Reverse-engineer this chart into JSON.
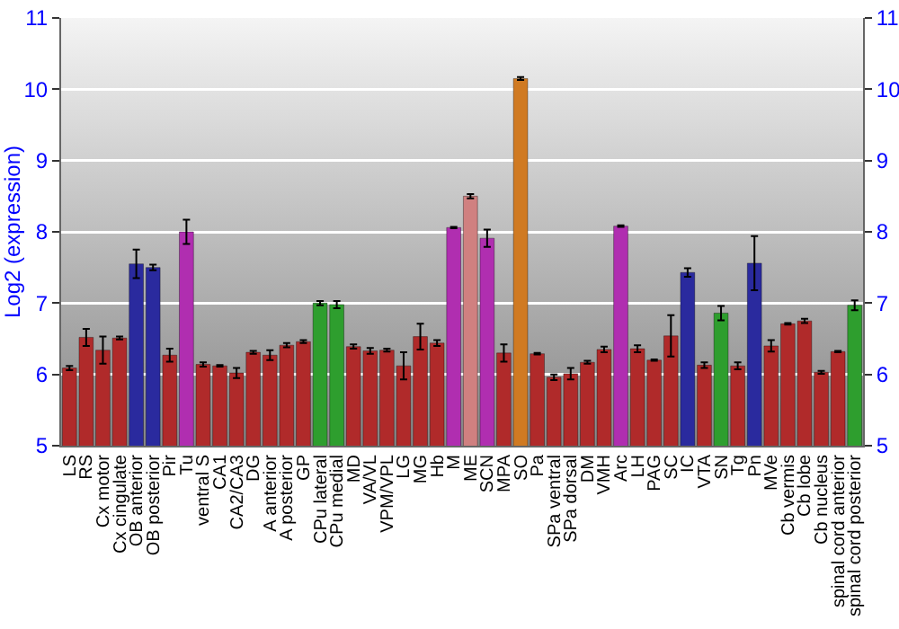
{
  "chart_data": {
    "type": "bar",
    "ylabel": "Log2 (expression)",
    "categories": [
      "LS",
      "RS",
      "Cx motor",
      "Cx cingulate",
      "OB anterior",
      "OB posterior",
      "Pir",
      "Tu",
      "ventral S",
      "CA1",
      "CA2/CA3",
      "DG",
      "A anterior",
      "A posterior",
      "GP",
      "CPu lateral",
      "CPu medial",
      "MD",
      "VA/VL",
      "VPM/VPL",
      "LG",
      "MG",
      "Hb",
      "M",
      "ME",
      "SCN",
      "MPA",
      "SO",
      "Pa",
      "SPa ventral",
      "SPa dorsal",
      "DM",
      "VMH",
      "Arc",
      "LH",
      "PAG",
      "SC",
      "IC",
      "VTA",
      "SN",
      "Tg",
      "Pn",
      "MVe",
      "Cb vermis",
      "Cb lobe",
      "Cb nucleus",
      "spinal cord anterior",
      "spinal cord posterior"
    ],
    "values": [
      6.09,
      6.52,
      6.34,
      6.51,
      7.55,
      7.5,
      6.27,
      8.0,
      6.14,
      6.12,
      6.02,
      6.31,
      6.27,
      6.41,
      6.46,
      7.0,
      6.98,
      6.39,
      6.33,
      6.34,
      6.12,
      6.53,
      6.44,
      8.06,
      8.5,
      7.91,
      6.3,
      10.15,
      6.29,
      5.96,
      6.01,
      6.17,
      6.35,
      8.08,
      6.36,
      6.2,
      6.54,
      7.43,
      6.13,
      6.86,
      6.12,
      7.56,
      6.4,
      6.71,
      6.75,
      6.03,
      6.32,
      6.97
    ],
    "errors": [
      0.03,
      0.12,
      0.19,
      0.02,
      0.2,
      0.04,
      0.09,
      0.17,
      0.03,
      0.01,
      0.07,
      0.02,
      0.07,
      0.03,
      0.02,
      0.03,
      0.05,
      0.03,
      0.04,
      0.02,
      0.19,
      0.18,
      0.04,
      0.01,
      0.03,
      0.12,
      0.12,
      0.02,
      0.01,
      0.04,
      0.08,
      0.02,
      0.04,
      0.01,
      0.05,
      0.01,
      0.29,
      0.06,
      0.04,
      0.1,
      0.05,
      0.38,
      0.08,
      0.01,
      0.03,
      0.02,
      0.01,
      0.07
    ],
    "colors": [
      "#b02a2a",
      "#b02a2a",
      "#b02a2a",
      "#b02a2a",
      "#2a2a9e",
      "#2a2a9e",
      "#b02a2a",
      "#b02eb0",
      "#b02a2a",
      "#b02a2a",
      "#b02a2a",
      "#b02a2a",
      "#b02a2a",
      "#b02a2a",
      "#b02a2a",
      "#2e9e2e",
      "#2e9e2e",
      "#b02a2a",
      "#b02a2a",
      "#b02a2a",
      "#b02a2a",
      "#b02a2a",
      "#b02a2a",
      "#b02eb0",
      "#d08080",
      "#b02eb0",
      "#b02a2a",
      "#d07a22",
      "#b02a2a",
      "#b02a2a",
      "#b02a2a",
      "#b02a2a",
      "#b02a2a",
      "#b02eb0",
      "#b02a2a",
      "#b02a2a",
      "#b02a2a",
      "#2a2a9e",
      "#b02a2a",
      "#2e9e2e",
      "#b02a2a",
      "#2a2a9e",
      "#b02a2a",
      "#b02a2a",
      "#b02a2a",
      "#b02a2a",
      "#b02a2a",
      "#2e9e2e"
    ],
    "ylim": [
      5,
      11
    ],
    "yticks": [
      5,
      6,
      7,
      8,
      9,
      10,
      11
    ],
    "y2lim": [
      5,
      11
    ],
    "y2ticks": [
      5,
      6,
      7,
      8,
      9,
      10,
      11
    ],
    "grid": "y"
  }
}
